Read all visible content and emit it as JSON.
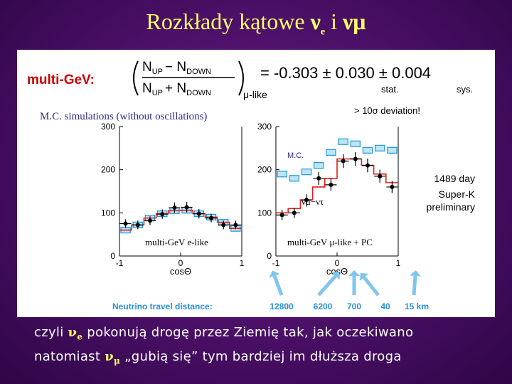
{
  "title": {
    "text": "Rozkłady kątowe",
    "nu_e": "ν",
    "e_sub": "e",
    "and": "i",
    "nu_mu": "νμ"
  },
  "formula": {
    "label": "multi-GeV:",
    "numerator": "N",
    "numerator_sub_up": "UP",
    "minus": "− N",
    "numerator_sub_down": "DOWN",
    "denominator": "N",
    "denominator_sub_up": "UP",
    "plus": "+ N",
    "denominator_sub_down": "DOWN",
    "suffix": "μ-like",
    "result": "= -0.303 ± 0.030 ± 0.004",
    "stat_label": "stat.",
    "sys_label": "sys.",
    "deviation": "> 10σ deviation!"
  },
  "mc_label": "M.C. simulations (without oscillations)",
  "chart_data": [
    {
      "type": "bar",
      "name_label": "multi-GeV e-like",
      "xlabel": "cosΘ",
      "x_ticks": [
        "-1",
        "0",
        "1"
      ],
      "y_ticks": [
        "0",
        "100",
        "200",
        "300"
      ],
      "ylim": [
        0,
        300
      ],
      "xlim": [
        -1,
        1
      ],
      "bins": [
        -0.9,
        -0.7,
        -0.5,
        -0.3,
        -0.1,
        0.1,
        0.3,
        0.5,
        0.7,
        0.9
      ],
      "data": [
        75,
        72,
        82,
        97,
        112,
        113,
        98,
        88,
        72,
        72
      ],
      "data_err": [
        10,
        10,
        10,
        11,
        12,
        12,
        11,
        10,
        10,
        10
      ],
      "mc": [
        60,
        72,
        88,
        98,
        105,
        106,
        98,
        90,
        78,
        64
      ],
      "mc_osc": [
        60,
        72,
        88,
        98,
        105,
        106,
        98,
        90,
        78,
        64
      ]
    },
    {
      "type": "bar",
      "name_label": "multi-GeV μ-like + PC",
      "mc_label": "M.C.",
      "osc_label": "νμ−ντ",
      "xlabel": "cosΘ",
      "x_ticks": [
        "-1",
        "0",
        "1"
      ],
      "y_ticks": [
        "0",
        "100",
        "200",
        "300"
      ],
      "ylim": [
        0,
        300
      ],
      "xlim": [
        -1,
        1
      ],
      "bins": [
        -0.9,
        -0.7,
        -0.5,
        -0.3,
        -0.1,
        0.1,
        0.3,
        0.5,
        0.7,
        0.9
      ],
      "data": [
        95,
        100,
        130,
        180,
        165,
        220,
        225,
        210,
        185,
        160
      ],
      "data_err": [
        12,
        12,
        13,
        15,
        14,
        16,
        16,
        16,
        15,
        14
      ],
      "mc": [
        190,
        180,
        195,
        210,
        240,
        265,
        260,
        245,
        250,
        245
      ],
      "mc_osc": [
        100,
        110,
        130,
        160,
        180,
        225,
        225,
        210,
        190,
        170
      ]
    }
  ],
  "superk": {
    "line1": "1489 day",
    "line2": "Super-K",
    "line3": "preliminary"
  },
  "travel": {
    "label": "Neutrino travel distance:",
    "values": [
      "12800",
      "6200",
      "700",
      "40",
      "15 km"
    ]
  },
  "footer": {
    "l1_a": "czyli",
    "l1_nu": "ν",
    "l1_sub": "e",
    "l1_b": "pokonują drogę przez Ziemię tak, jak oczekiwano",
    "l2_a": "natomiast",
    "l2_nu": "ν",
    "l2_sub": "μ",
    "l2_b": "„gubią się” tym bardziej im dłuższa droga"
  },
  "colors": {
    "title": "#ffff66",
    "formula_label": "#cc0000",
    "data": "#000000",
    "mc": "#1b9ad6",
    "osc": "#e0201b",
    "travel": "#2a8fd8"
  }
}
